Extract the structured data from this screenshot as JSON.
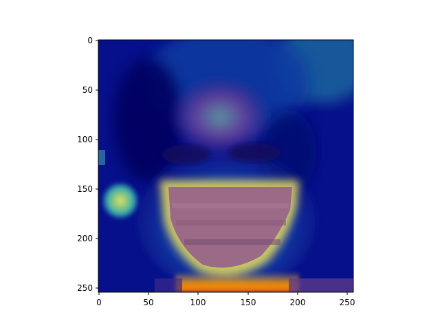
{
  "figure": {
    "type": "image",
    "description_kind": "heatmap-overlay-on-face-photo",
    "colormap": "jet",
    "x_ticks": [
      "0",
      "50",
      "100",
      "150",
      "200",
      "250"
    ],
    "y_ticks": [
      "0",
      "50",
      "100",
      "150",
      "200",
      "250"
    ],
    "x_range": [
      0,
      256
    ],
    "y_range": [
      0,
      256
    ],
    "y_axis_inverted": true,
    "colors": {
      "low": "#00007f",
      "mid_low": "#0044cc",
      "mid": "#20a0a0",
      "mid_high": "#d8d84a",
      "high": "#ff7a00",
      "face_tone": "#a06a8a"
    }
  }
}
